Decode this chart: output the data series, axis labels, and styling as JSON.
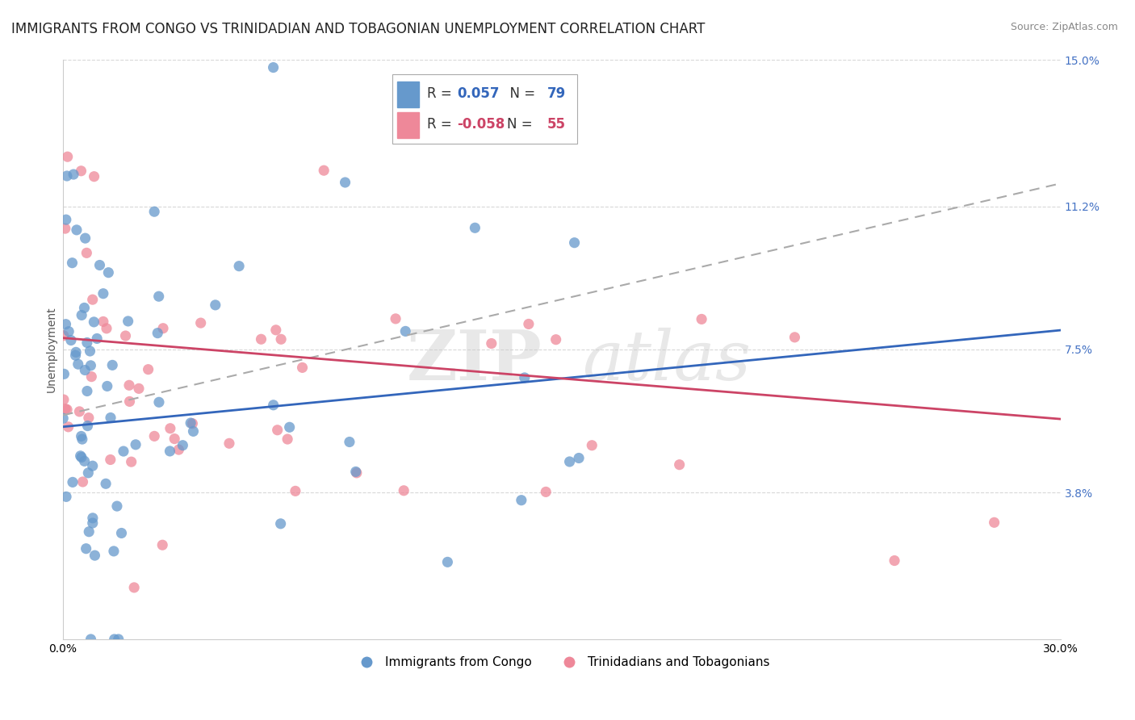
{
  "title": "IMMIGRANTS FROM CONGO VS TRINIDADIAN AND TOBAGONIAN UNEMPLOYMENT CORRELATION CHART",
  "source": "Source: ZipAtlas.com",
  "ylabel": "Unemployment",
  "xlabel": "",
  "xlim": [
    0.0,
    0.3
  ],
  "ylim": [
    0.0,
    0.15
  ],
  "yticks": [
    0.038,
    0.075,
    0.112,
    0.15
  ],
  "ytick_labels": [
    "3.8%",
    "7.5%",
    "11.2%",
    "15.0%"
  ],
  "xticks": [
    0.0,
    0.3
  ],
  "xtick_labels": [
    "0.0%",
    "30.0%"
  ],
  "series1_label": "Immigrants from Congo",
  "series1_color": "#6699cc",
  "series1_R": "0.057",
  "series1_N": "79",
  "series2_label": "Trinidadians and Tobagonians",
  "series2_color": "#ee8899",
  "series2_R": "-0.058",
  "series2_N": "55",
  "watermark_zip": "ZIP",
  "watermark_atlas": "atlas",
  "watermark_color": "#cccccc",
  "background_color": "#ffffff",
  "grid_color": "#d8d8d8",
  "title_fontsize": 12,
  "axis_fontsize": 10,
  "legend_fontsize": 11,
  "trend1_color": "#3366bb",
  "trend2_color": "#cc4466",
  "trend_dashed_color": "#aaaaaa",
  "legend_R_color": "#3366bb",
  "legend_R2_color": "#cc4466",
  "legend_N_color": "#3366bb",
  "legend_N2_color": "#cc4466"
}
